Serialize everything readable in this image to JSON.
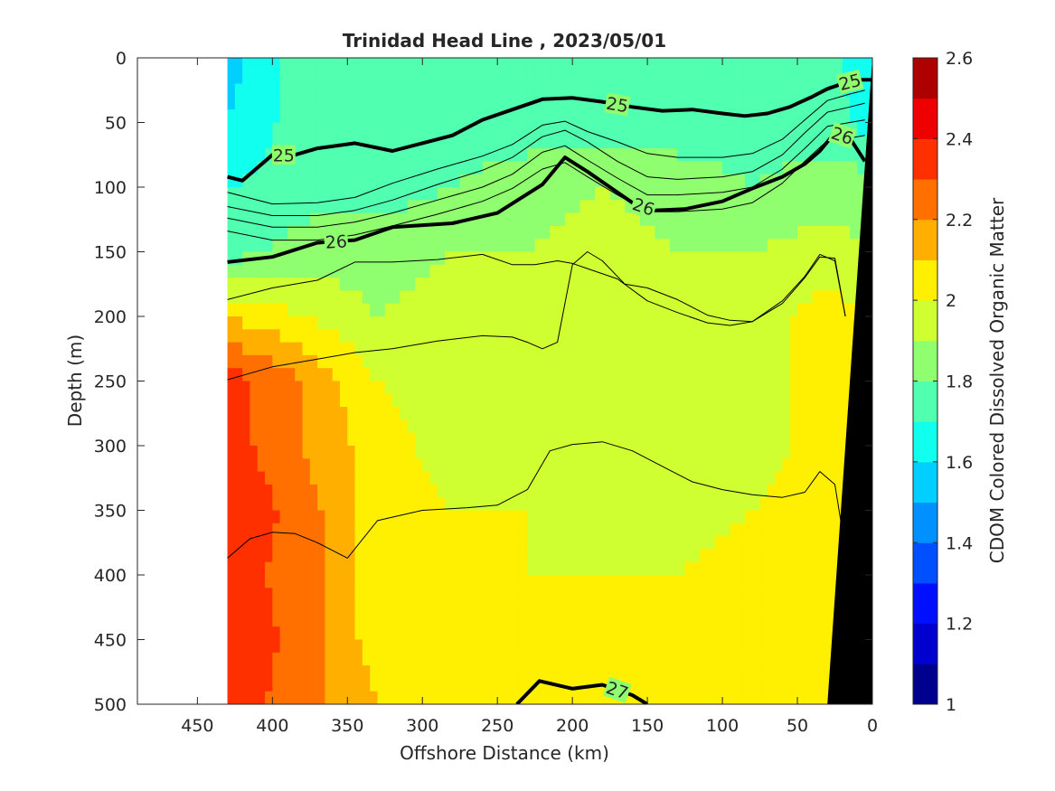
{
  "chart_data": {
    "type": "heatmap",
    "title": "Trinidad Head Line , 2023/05/01",
    "xlabel": "Offshore Distance (km)",
    "ylabel": "Depth (m)",
    "colorbar_label": "CDOM Colored Dissolved Organic Matter",
    "xlim": [
      490,
      0
    ],
    "x_reversed": true,
    "ylim": [
      0,
      500
    ],
    "y_reversed": true,
    "xticks": [
      450,
      400,
      350,
      300,
      250,
      200,
      150,
      100,
      50,
      0
    ],
    "yticks": [
      0,
      50,
      100,
      150,
      200,
      250,
      300,
      350,
      400,
      450,
      500
    ],
    "colorbar_range": [
      1,
      2.6
    ],
    "colorbar_ticks": [
      1,
      1.2,
      1.4,
      1.6,
      1.8,
      2,
      2.2,
      2.4,
      2.6
    ],
    "colormap": [
      "#00008f",
      "#0000cf",
      "#0010ff",
      "#0050ff",
      "#0090ff",
      "#00cfff",
      "#10ffef",
      "#50ffaf",
      "#90ff6f",
      "#cfff30",
      "#ffef00",
      "#ffaf00",
      "#ff7000",
      "#ff3000",
      "#ef0000",
      "#af0000"
    ],
    "data_extent_km": [
      430,
      0
    ],
    "cdom_field": {
      "x": [
        430,
        380,
        330,
        280,
        230,
        180,
        130,
        80,
        30,
        0
      ],
      "depth": [
        0,
        50,
        100,
        150,
        200,
        250,
        300,
        350,
        400,
        450,
        500
      ],
      "z": [
        [
          1.55,
          1.75,
          1.75,
          1.75,
          1.75,
          1.75,
          1.75,
          1.75,
          1.75,
          1.6
        ],
        [
          1.6,
          1.75,
          1.75,
          1.75,
          1.75,
          1.75,
          1.75,
          1.75,
          1.75,
          1.65
        ],
        [
          1.7,
          1.75,
          1.75,
          1.8,
          1.85,
          1.9,
          1.85,
          1.8,
          1.85,
          1.85
        ],
        [
          1.75,
          1.85,
          1.85,
          1.9,
          1.9,
          1.95,
          1.9,
          1.9,
          1.95,
          1.9
        ],
        [
          2.1,
          2.0,
          1.9,
          1.95,
          1.95,
          1.95,
          1.95,
          1.95,
          2.05,
          2.0
        ],
        [
          2.35,
          2.2,
          2.0,
          1.95,
          1.95,
          1.95,
          1.95,
          1.95,
          2.05,
          2.0
        ],
        [
          2.35,
          2.2,
          2.05,
          1.95,
          1.95,
          1.95,
          1.95,
          1.95,
          2.05,
          2.0
        ],
        [
          2.4,
          2.25,
          2.05,
          2.0,
          2.0,
          1.95,
          1.95,
          2.0,
          2.05,
          2.0
        ],
        [
          2.35,
          2.25,
          2.05,
          2.05,
          2.0,
          2.0,
          2.0,
          2.05,
          2.05,
          2.0
        ],
        [
          2.4,
          2.25,
          2.05,
          2.05,
          2.05,
          2.05,
          2.05,
          2.05,
          2.05,
          2.0
        ],
        [
          2.35,
          2.25,
          2.1,
          2.05,
          2.05,
          2.05,
          2.05,
          2.05,
          2.05,
          2.0
        ]
      ]
    },
    "contours": [
      {
        "level": "25",
        "bold": true,
        "labels": [
          "25",
          "25",
          "25"
        ],
        "points": [
          [
            430,
            92
          ],
          [
            420,
            95
          ],
          [
            400,
            75
          ],
          [
            385,
            75
          ],
          [
            370,
            70
          ],
          [
            345,
            66
          ],
          [
            320,
            72
          ],
          [
            300,
            66
          ],
          [
            280,
            60
          ],
          [
            260,
            48
          ],
          [
            240,
            40
          ],
          [
            220,
            32
          ],
          [
            200,
            31
          ],
          [
            180,
            34
          ],
          [
            160,
            38
          ],
          [
            140,
            41
          ],
          [
            120,
            40
          ],
          [
            100,
            43
          ],
          [
            85,
            45
          ],
          [
            70,
            43
          ],
          [
            55,
            38
          ],
          [
            40,
            30
          ],
          [
            30,
            24
          ],
          [
            20,
            20
          ],
          [
            10,
            17
          ],
          [
            0,
            17
          ]
        ]
      },
      {
        "level": "26",
        "bold": true,
        "labels": [
          "26",
          "26",
          "26"
        ],
        "points": [
          [
            430,
            158
          ],
          [
            400,
            154
          ],
          [
            370,
            143
          ],
          [
            345,
            141
          ],
          [
            320,
            131
          ],
          [
            280,
            128
          ],
          [
            250,
            120
          ],
          [
            220,
            98
          ],
          [
            205,
            77
          ],
          [
            190,
            88
          ],
          [
            175,
            100
          ],
          [
            160,
            112
          ],
          [
            145,
            118
          ],
          [
            125,
            117
          ],
          [
            100,
            111
          ],
          [
            80,
            101
          ],
          [
            60,
            92
          ],
          [
            45,
            82
          ],
          [
            35,
            72
          ],
          [
            25,
            58
          ],
          [
            15,
            62
          ],
          [
            5,
            80
          ]
        ]
      },
      {
        "level": "27",
        "bold": true,
        "labels": [
          "27"
        ],
        "points": [
          [
            237,
            500
          ],
          [
            222,
            482
          ],
          [
            200,
            488
          ],
          [
            180,
            485
          ],
          [
            160,
            493
          ],
          [
            150,
            500
          ]
        ]
      },
      {
        "level": "",
        "bold": false,
        "points": [
          [
            430,
            104
          ],
          [
            400,
            113
          ],
          [
            370,
            112
          ],
          [
            345,
            108
          ],
          [
            320,
            97
          ],
          [
            290,
            86
          ],
          [
            260,
            76
          ],
          [
            240,
            67
          ],
          [
            220,
            52
          ],
          [
            205,
            49
          ],
          [
            190,
            57
          ],
          [
            170,
            65
          ],
          [
            150,
            74
          ],
          [
            130,
            77
          ],
          [
            100,
            77
          ],
          [
            80,
            74
          ],
          [
            60,
            63
          ],
          [
            45,
            48
          ],
          [
            30,
            33
          ],
          [
            15,
            28
          ],
          [
            5,
            25
          ]
        ]
      },
      {
        "level": "",
        "bold": false,
        "points": [
          [
            430,
            115
          ],
          [
            400,
            122
          ],
          [
            370,
            122
          ],
          [
            345,
            118
          ],
          [
            320,
            110
          ],
          [
            290,
            98
          ],
          [
            260,
            87
          ],
          [
            240,
            77
          ],
          [
            220,
            61
          ],
          [
            205,
            56
          ],
          [
            190,
            65
          ],
          [
            170,
            80
          ],
          [
            150,
            92
          ],
          [
            130,
            94
          ],
          [
            100,
            92
          ],
          [
            80,
            88
          ],
          [
            60,
            75
          ],
          [
            45,
            58
          ],
          [
            30,
            42
          ],
          [
            15,
            38
          ],
          [
            5,
            35
          ]
        ]
      },
      {
        "level": "",
        "bold": false,
        "points": [
          [
            430,
            124
          ],
          [
            400,
            131
          ],
          [
            370,
            131
          ],
          [
            345,
            127
          ],
          [
            320,
            120
          ],
          [
            290,
            110
          ],
          [
            260,
            100
          ],
          [
            240,
            90
          ],
          [
            220,
            73
          ],
          [
            205,
            68
          ],
          [
            190,
            79
          ],
          [
            170,
            93
          ],
          [
            150,
            106
          ],
          [
            130,
            106
          ],
          [
            100,
            104
          ],
          [
            80,
            100
          ],
          [
            60,
            86
          ],
          [
            45,
            70
          ],
          [
            30,
            53
          ],
          [
            15,
            50
          ],
          [
            5,
            48
          ]
        ]
      },
      {
        "level": "",
        "bold": false,
        "points": [
          [
            430,
            134
          ],
          [
            400,
            141
          ],
          [
            370,
            141
          ],
          [
            345,
            137
          ],
          [
            320,
            130
          ],
          [
            290,
            121
          ],
          [
            260,
            111
          ],
          [
            240,
            101
          ],
          [
            220,
            86
          ],
          [
            205,
            81
          ],
          [
            190,
            92
          ],
          [
            170,
            106
          ],
          [
            150,
            119
          ],
          [
            130,
            119
          ],
          [
            100,
            117
          ],
          [
            80,
            112
          ],
          [
            60,
            97
          ],
          [
            45,
            80
          ],
          [
            30,
            64
          ],
          [
            15,
            62
          ],
          [
            5,
            60
          ]
        ]
      },
      {
        "level": "",
        "bold": false,
        "points": [
          [
            430,
            187
          ],
          [
            400,
            178
          ],
          [
            370,
            172
          ],
          [
            345,
            158
          ],
          [
            320,
            158
          ],
          [
            290,
            156
          ],
          [
            260,
            152
          ],
          [
            240,
            160
          ],
          [
            225,
            160
          ],
          [
            210,
            157
          ],
          [
            200,
            159
          ],
          [
            190,
            163
          ],
          [
            170,
            171
          ],
          [
            150,
            188
          ],
          [
            130,
            197
          ],
          [
            110,
            205
          ],
          [
            95,
            207
          ],
          [
            80,
            204
          ],
          [
            60,
            188
          ],
          [
            45,
            169
          ],
          [
            35,
            152
          ],
          [
            25,
            157
          ],
          [
            18,
            200
          ]
        ]
      },
      {
        "level": "",
        "bold": false,
        "points": [
          [
            430,
            249
          ],
          [
            400,
            239
          ],
          [
            370,
            233
          ],
          [
            345,
            228
          ],
          [
            320,
            225
          ],
          [
            290,
            219
          ],
          [
            260,
            215
          ],
          [
            240,
            216
          ],
          [
            230,
            220
          ],
          [
            220,
            225
          ],
          [
            210,
            220
          ],
          [
            200,
            160
          ],
          [
            190,
            150
          ],
          [
            180,
            157
          ],
          [
            165,
            175
          ],
          [
            150,
            178
          ],
          [
            130,
            187
          ],
          [
            110,
            199
          ],
          [
            95,
            203
          ],
          [
            80,
            204
          ],
          [
            60,
            190
          ],
          [
            45,
            170
          ],
          [
            35,
            154
          ],
          [
            25,
            155
          ],
          [
            18,
            200
          ]
        ]
      },
      {
        "level": "",
        "bold": false,
        "points": [
          [
            430,
            387
          ],
          [
            415,
            372
          ],
          [
            400,
            367
          ],
          [
            385,
            368
          ],
          [
            370,
            375
          ],
          [
            350,
            387
          ],
          [
            330,
            358
          ],
          [
            300,
            350
          ],
          [
            270,
            348
          ],
          [
            250,
            346
          ],
          [
            230,
            334
          ],
          [
            215,
            304
          ],
          [
            200,
            299
          ],
          [
            180,
            297
          ],
          [
            160,
            304
          ],
          [
            140,
            316
          ],
          [
            120,
            328
          ],
          [
            100,
            334
          ],
          [
            80,
            338
          ],
          [
            60,
            340
          ],
          [
            45,
            336
          ],
          [
            35,
            320
          ],
          [
            25,
            330
          ],
          [
            18,
            380
          ]
        ]
      }
    ]
  }
}
